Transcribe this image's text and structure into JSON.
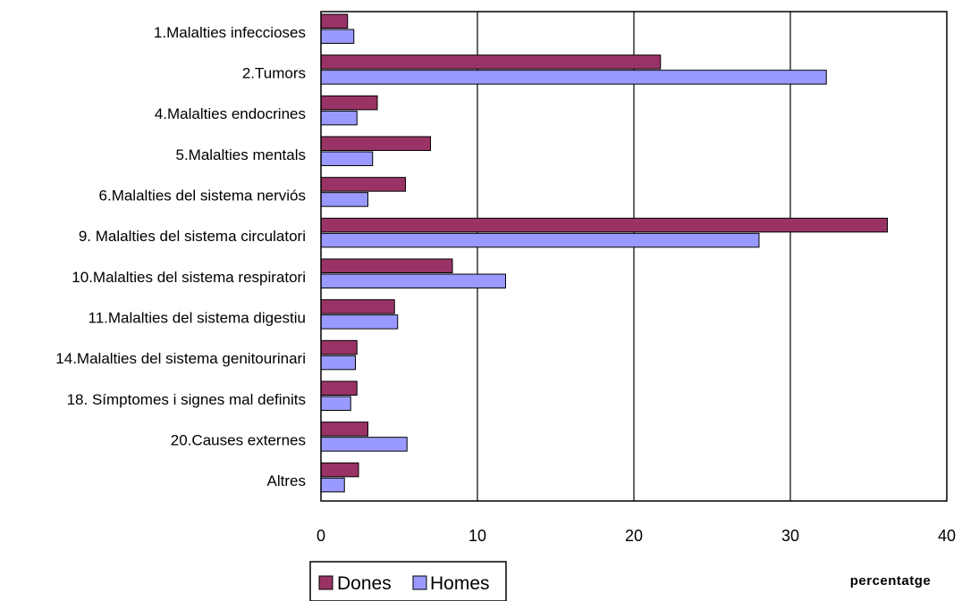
{
  "chart_data": {
    "type": "bar",
    "orientation": "horizontal",
    "categories": [
      "1.Malalties infeccioses",
      "2.Tumors",
      "4.Malalties endocrines",
      "5.Malalties mentals",
      "6.Malalties del sistema nerviós",
      "9. Malalties del sistema circulatori",
      "10.Malalties del sistema respiratori",
      "11.Malalties del sistema digestiu",
      "14.Malalties del sistema genitourinari",
      "18. Símptomes i signes mal definits",
      "20.Causes externes",
      "Altres"
    ],
    "series": [
      {
        "name": "Dones",
        "color": "#993366",
        "values": [
          1.7,
          21.7,
          3.6,
          7.0,
          5.4,
          36.2,
          8.4,
          4.7,
          2.3,
          2.3,
          3.0,
          2.4
        ]
      },
      {
        "name": "Homes",
        "color": "#9999ff",
        "values": [
          2.1,
          32.3,
          2.3,
          3.3,
          3.0,
          28.0,
          11.8,
          4.9,
          2.2,
          1.9,
          5.5,
          1.5
        ]
      }
    ],
    "xlim": [
      0,
      40
    ],
    "xticks": [
      "0",
      "10",
      "20",
      "30",
      "40"
    ],
    "xlabel": "percentatge",
    "ylabel": "",
    "title": "",
    "grid": "vertical",
    "legend_position": "bottom"
  }
}
